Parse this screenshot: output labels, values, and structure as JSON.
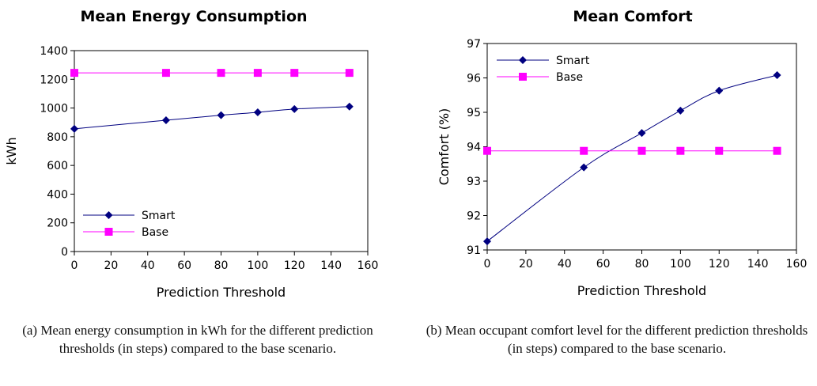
{
  "chart_data": [
    {
      "type": "line",
      "title": "Mean Energy Consumption",
      "xlabel": "Prediction Threshold",
      "ylabel": "kWh",
      "xlim": [
        0,
        160
      ],
      "ylim": [
        0,
        1400
      ],
      "xticks": [
        0,
        20,
        40,
        60,
        80,
        100,
        120,
        140,
        160
      ],
      "yticks": [
        0,
        200,
        400,
        600,
        800,
        1000,
        1200,
        1400
      ],
      "grid": false,
      "legend": "bottom-left",
      "x": [
        0,
        50,
        80,
        100,
        120,
        150
      ],
      "series": [
        {
          "name": "Smart",
          "color": "#000080",
          "marker": "diamond",
          "values": [
            855,
            915,
            950,
            970,
            993,
            1010
          ]
        },
        {
          "name": "Base",
          "color": "#ff00ff",
          "marker": "square",
          "values": [
            1245,
            1245,
            1245,
            1245,
            1245,
            1245
          ]
        }
      ]
    },
    {
      "type": "line",
      "title": "Mean Comfort",
      "xlabel": "Prediction Threshold",
      "ylabel": "Comfort (%)",
      "xlim": [
        0,
        160
      ],
      "ylim": [
        91,
        97
      ],
      "xticks": [
        0,
        20,
        40,
        60,
        80,
        100,
        120,
        140,
        160
      ],
      "yticks": [
        91,
        92,
        93,
        94,
        95,
        96,
        97
      ],
      "grid": false,
      "legend": "top-left",
      "x": [
        0,
        50,
        80,
        100,
        120,
        150
      ],
      "series": [
        {
          "name": "Smart",
          "color": "#000080",
          "marker": "diamond",
          "values": [
            91.25,
            93.4,
            94.4,
            95.05,
            95.63,
            96.08
          ]
        },
        {
          "name": "Base",
          "color": "#ff00ff",
          "marker": "square",
          "values": [
            93.88,
            93.88,
            93.88,
            93.88,
            93.88,
            93.88
          ]
        }
      ]
    }
  ],
  "captions": {
    "a": "(a) Mean energy consumption in kWh for the different prediction thresholds (in steps) compared to the base scenario.",
    "b": "(b) Mean occupant comfort level for the different prediction thresholds (in steps) compared to the base scenario."
  }
}
